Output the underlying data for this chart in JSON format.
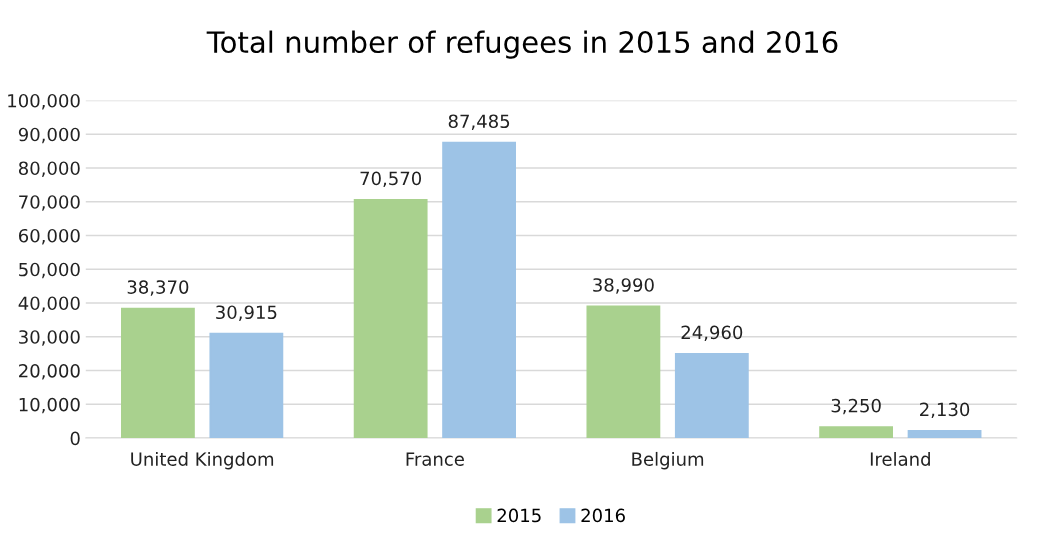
{
  "chart_data": {
    "type": "bar",
    "title": "Total number of refugees in 2015 and 2016",
    "categories": [
      "United Kingdom",
      "France",
      "Belgium",
      "Ireland"
    ],
    "series": [
      {
        "name": "2015",
        "color": "#a9d18e",
        "values": [
          38370,
          70570,
          38990,
          3250
        ],
        "value_labels": [
          "38,370",
          "70,570",
          "38,990",
          "3,250"
        ]
      },
      {
        "name": "2016",
        "color": "#9dc3e6",
        "values": [
          30915,
          87485,
          24960,
          2130
        ],
        "value_labels": [
          "30,915",
          "87,485",
          "24,960",
          "2,130"
        ]
      }
    ],
    "ylim": [
      0,
      100000
    ],
    "yticks": [
      {
        "value": 0,
        "label": "0"
      },
      {
        "value": 10000,
        "label": "10,000"
      },
      {
        "value": 20000,
        "label": "20,000"
      },
      {
        "value": 30000,
        "label": "30,000"
      },
      {
        "value": 40000,
        "label": "40,000"
      },
      {
        "value": 50000,
        "label": "50,000"
      },
      {
        "value": 60000,
        "label": "60,000"
      },
      {
        "value": 70000,
        "label": "70,000"
      },
      {
        "value": 80000,
        "label": "80,000"
      },
      {
        "value": 90000,
        "label": "90,000"
      },
      {
        "value": 100000,
        "label": "100,000"
      }
    ],
    "grid": "y",
    "legend": "bottom"
  }
}
